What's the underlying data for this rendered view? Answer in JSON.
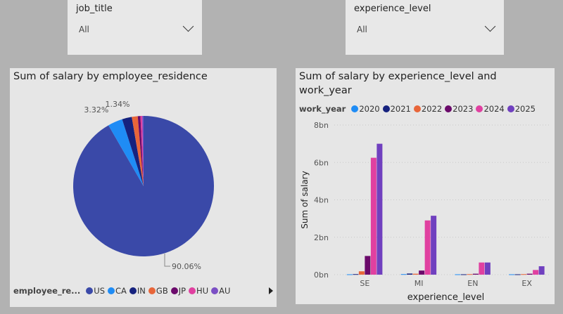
{
  "slicers": [
    {
      "title": "job_title",
      "value": "All"
    },
    {
      "title": "experience_level",
      "value": "All"
    }
  ],
  "pie_panel": {
    "title": "Sum of salary by employee_residence",
    "legend_title": "employee_re...",
    "more_icon": "triangle-right-icon"
  },
  "bar_panel": {
    "title_line1": "Sum of salary by experience_level and",
    "title_line2": "work_year",
    "legend_title": "work_year"
  },
  "chart_data": [
    {
      "type": "pie",
      "title": "Sum of salary by employee_residence",
      "categories": [
        "US",
        "CA",
        "IN",
        "GB",
        "JP",
        "HU",
        "AU"
      ],
      "values": [
        90.06,
        3.32,
        2.2,
        1.34,
        0.6,
        0.4,
        0.3
      ],
      "colors": [
        "#3a49a8",
        "#1f8cf5",
        "#16227e",
        "#e8663a",
        "#6b0a6b",
        "#e040a0",
        "#7b4fc4"
      ],
      "data_labels": {
        "US": "90.06%",
        "CA": "3.32%",
        "GB": "1.34%"
      },
      "legend_position": "bottom-left"
    },
    {
      "type": "bar",
      "title": "Sum of salary by experience_level and work_year",
      "categories": [
        "SE",
        "MI",
        "EN",
        "EX"
      ],
      "xlabel": "experience_level",
      "ylabel": "Sum of salary",
      "yticks": [
        "0bn",
        "2bn",
        "4bn",
        "6bn",
        "8bn"
      ],
      "ylim": [
        0,
        8
      ],
      "unit": "bn",
      "grid": true,
      "legend_position": "top-left",
      "series": [
        {
          "name": "2020",
          "color": "#1f8cf5",
          "values": [
            0.02,
            0.03,
            0.02,
            0.02
          ]
        },
        {
          "name": "2021",
          "color": "#16227e",
          "values": [
            0.03,
            0.06,
            0.02,
            0.02
          ]
        },
        {
          "name": "2022",
          "color": "#e8663a",
          "values": [
            0.18,
            0.05,
            0.03,
            0.03
          ]
        },
        {
          "name": "2023",
          "color": "#6b0a6b",
          "values": [
            1.0,
            0.22,
            0.05,
            0.05
          ]
        },
        {
          "name": "2024",
          "color": "#e040a0",
          "values": [
            6.25,
            2.9,
            0.65,
            0.25
          ]
        },
        {
          "name": "2025",
          "color": "#7040bf",
          "values": [
            7.0,
            3.15,
            0.65,
            0.45
          ]
        }
      ]
    }
  ]
}
